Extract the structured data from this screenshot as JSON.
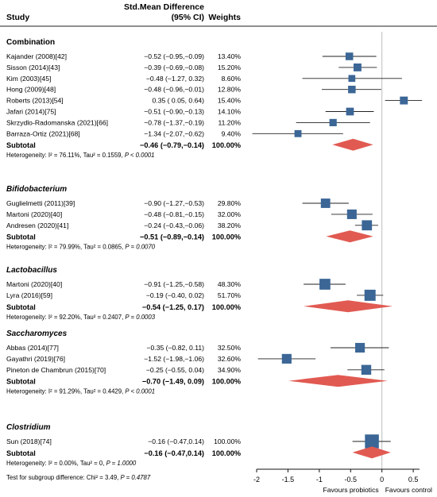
{
  "header": {
    "study": "Study",
    "effect_line1": "Std.Mean Difference",
    "effect_line2": "(95% CI)",
    "weights": "Weights"
  },
  "groups": [
    {
      "name": "Combination",
      "italic": false,
      "studies": [
        {
          "label": "Kajander (2008)[42]",
          "ci_text": "−0.52 (−0.95,−0.09)",
          "weight_text": "13.40%"
        },
        {
          "label": "Sisson (2014)[43]",
          "ci_text": "−0.39 (−0.69,−0.08)",
          "weight_text": "15.20%"
        },
        {
          "label": "Kim (2003)[45]",
          "ci_text": "−0.48 (−1.27, 0.32)",
          "weight_text": "8.60%"
        },
        {
          "label": "Hong (2009)[48]",
          "ci_text": "−0.48 (−0.96,−0.01)",
          "weight_text": "12.80%"
        },
        {
          "label": "Roberts (2013)[54]",
          "ci_text": "0.35 ( 0.05, 0.64)",
          "weight_text": "15.40%"
        },
        {
          "label": "Jafari (2014)[75]",
          "ci_text": "−0.51 (−0.90,−0.13)",
          "weight_text": "14.10%"
        },
        {
          "label": "Skrzydlo-Radomanska (2021)[66]",
          "ci_text": "−0.78 (−1.37,−0.19)",
          "weight_text": "11.20%"
        },
        {
          "label": "Barraza-Ortiz (2021)[68]",
          "ci_text": "−1.34 (−2.07,−0.62)",
          "weight_text": "9.40%"
        }
      ],
      "subtotal": {
        "label": "Subtotal",
        "ci_text": "−0.46 (−0.79,−0.14)",
        "weight_text": "100.00%"
      },
      "heterogeneity": {
        "prefix": "Heterogeneity: ",
        "i2": "I² = 76.11%",
        "tau": ", Tau² = 0.1559, ",
        "p": "P < 0.0001"
      }
    },
    {
      "name": "Bifidobacterium",
      "italic": true,
      "studies": [
        {
          "label": "Guglielmetti (2011)[39]",
          "ci_text": "−0.90 (−1.27,−0.53)",
          "weight_text": "29.80%"
        },
        {
          "label": "Martoni (2020)[40]",
          "ci_text": "−0.48 (−0.81,−0.15)",
          "weight_text": "32.00%"
        },
        {
          "label": "Andresen (2020)[41]",
          "ci_text": "−0.24 (−0.43,−0.06)",
          "weight_text": "38.20%"
        }
      ],
      "subtotal": {
        "label": "Subtotal",
        "ci_text": "−0.51 (−0.89,−0.14)",
        "weight_text": "100.00%"
      },
      "heterogeneity": {
        "prefix": "Heterogeneity: ",
        "i2": "I² = 79.99%",
        "tau": ", Tau² = 0.0865, ",
        "p": "P = 0.0070"
      }
    },
    {
      "name": "Lactobacillus",
      "italic": true,
      "studies": [
        {
          "label": "Martoni (2020)[40]",
          "ci_text": "−0.91 (−1.25,−0.58)",
          "weight_text": "48.30%"
        },
        {
          "label": "Lyra (2016)[59]",
          "ci_text": "−0.19 (−0.40, 0.02)",
          "weight_text": "51.70%"
        }
      ],
      "subtotal": {
        "label": "Subtotal",
        "ci_text": "−0.54 (−1.25, 0.17)",
        "weight_text": "100.00%"
      },
      "heterogeneity": {
        "prefix": "Heterogeneity: ",
        "i2": "I² = 92.20%",
        "tau": ", Tau² = 0.2407, ",
        "p": "P = 0.0003"
      }
    },
    {
      "name": "Saccharomyces",
      "italic": true,
      "studies": [
        {
          "label": "Abbas (2014)[77]",
          "ci_text": "−0.35 (−0.82, 0.11)",
          "weight_text": "32.50%"
        },
        {
          "label": "Gayathri (2019)[76]",
          "ci_text": "−1.52 (−1.98,−1.06)",
          "weight_text": "32.60%"
        },
        {
          "label": "Pineton de Chambrun (2015)[70]",
          "ci_text": "−0.25 (−0.55, 0.04)",
          "weight_text": "34.90%"
        }
      ],
      "subtotal": {
        "label": "Subtotal",
        "ci_text": "−0.70 (−1.49, 0.09)",
        "weight_text": "100.00%"
      },
      "heterogeneity": {
        "prefix": "Heterogeneity: ",
        "i2": "I² = 91.29%",
        "tau": ", Tau² = 0.4429, ",
        "p": "P < 0.0001"
      }
    },
    {
      "name": "Clostridium",
      "italic": true,
      "studies": [
        {
          "label": "Sun (2018)[74]",
          "ci_text": "−0.16 (−0.47,0.14)",
          "weight_text": "100.00%"
        }
      ],
      "subtotal": {
        "label": "Subtotal",
        "ci_text": "−0.16 (−0.47,0.14)",
        "weight_text": "100.00%"
      },
      "heterogeneity": {
        "prefix": "Heterogeneity: ",
        "i2": "I² = 0.00%",
        "tau": ", Tau² = 0, ",
        "p": "P = 1.0000"
      }
    }
  ],
  "subgroup_test": {
    "prefix": "Test for subgroup difference: Chi² = 3.49, ",
    "p": "P = 0.4787"
  },
  "axis": {
    "ticks": [
      "-2",
      "-1.5",
      "-1",
      "-0.5",
      "0",
      "0.5"
    ],
    "left_label": "Favours probiotics",
    "right_label": "Favours control"
  },
  "colors": {
    "marker": "#3b6696",
    "diamond": "#e15a52",
    "ref_line": "#bdbdbd",
    "axis": "#111111"
  },
  "chart_data": {
    "type": "forest",
    "x_range": [
      -2,
      0.6
    ],
    "xticks": [
      -2,
      -1.5,
      -1,
      -0.5,
      0,
      0.5
    ],
    "reference_line": 0,
    "groups": [
      {
        "name": "Combination",
        "studies": [
          {
            "label": "Kajander (2008)[42]",
            "est": -0.52,
            "lo": -0.95,
            "hi": -0.09,
            "weight": 13.4
          },
          {
            "label": "Sisson (2014)[43]",
            "est": -0.39,
            "lo": -0.69,
            "hi": -0.08,
            "weight": 15.2
          },
          {
            "label": "Kim (2003)[45]",
            "est": -0.48,
            "lo": -1.27,
            "hi": 0.32,
            "weight": 8.6
          },
          {
            "label": "Hong (2009)[48]",
            "est": -0.48,
            "lo": -0.96,
            "hi": -0.01,
            "weight": 12.8
          },
          {
            "label": "Roberts (2013)[54]",
            "est": 0.35,
            "lo": 0.05,
            "hi": 0.64,
            "weight": 15.4
          },
          {
            "label": "Jafari (2014)[75]",
            "est": -0.51,
            "lo": -0.9,
            "hi": -0.13,
            "weight": 14.1
          },
          {
            "label": "Skrzydlo-Radomanska (2021)[66]",
            "est": -0.78,
            "lo": -1.37,
            "hi": -0.19,
            "weight": 11.2
          },
          {
            "label": "Barraza-Ortiz (2021)[68]",
            "est": -1.34,
            "lo": -2.07,
            "hi": -0.62,
            "weight": 9.4
          }
        ],
        "subtotal": {
          "est": -0.46,
          "lo": -0.79,
          "hi": -0.14
        }
      },
      {
        "name": "Bifidobacterium",
        "studies": [
          {
            "label": "Guglielmetti (2011)[39]",
            "est": -0.9,
            "lo": -1.27,
            "hi": -0.53,
            "weight": 29.8
          },
          {
            "label": "Martoni (2020)[40]",
            "est": -0.48,
            "lo": -0.81,
            "hi": -0.15,
            "weight": 32.0
          },
          {
            "label": "Andresen (2020)[41]",
            "est": -0.24,
            "lo": -0.43,
            "hi": -0.06,
            "weight": 38.2
          }
        ],
        "subtotal": {
          "est": -0.51,
          "lo": -0.89,
          "hi": -0.14
        }
      },
      {
        "name": "Lactobacillus",
        "studies": [
          {
            "label": "Martoni (2020)[40]",
            "est": -0.91,
            "lo": -1.25,
            "hi": -0.58,
            "weight": 48.3
          },
          {
            "label": "Lyra (2016)[59]",
            "est": -0.19,
            "lo": -0.4,
            "hi": 0.02,
            "weight": 51.7
          }
        ],
        "subtotal": {
          "est": -0.54,
          "lo": -1.25,
          "hi": 0.17
        }
      },
      {
        "name": "Saccharomyces",
        "studies": [
          {
            "label": "Abbas (2014)[77]",
            "est": -0.35,
            "lo": -0.82,
            "hi": 0.11,
            "weight": 32.5
          },
          {
            "label": "Gayathri (2019)[76]",
            "est": -1.52,
            "lo": -1.98,
            "hi": -1.06,
            "weight": 32.6
          },
          {
            "label": "Pineton de Chambrun (2015)[70]",
            "est": -0.25,
            "lo": -0.55,
            "hi": 0.04,
            "weight": 34.9
          }
        ],
        "subtotal": {
          "est": -0.7,
          "lo": -1.49,
          "hi": 0.09
        }
      },
      {
        "name": "Clostridium",
        "studies": [
          {
            "label": "Sun (2018)[74]",
            "est": -0.16,
            "lo": -0.47,
            "hi": 0.14,
            "weight": 100.0
          }
        ],
        "subtotal": {
          "est": -0.16,
          "lo": -0.47,
          "hi": 0.14
        }
      }
    ]
  }
}
